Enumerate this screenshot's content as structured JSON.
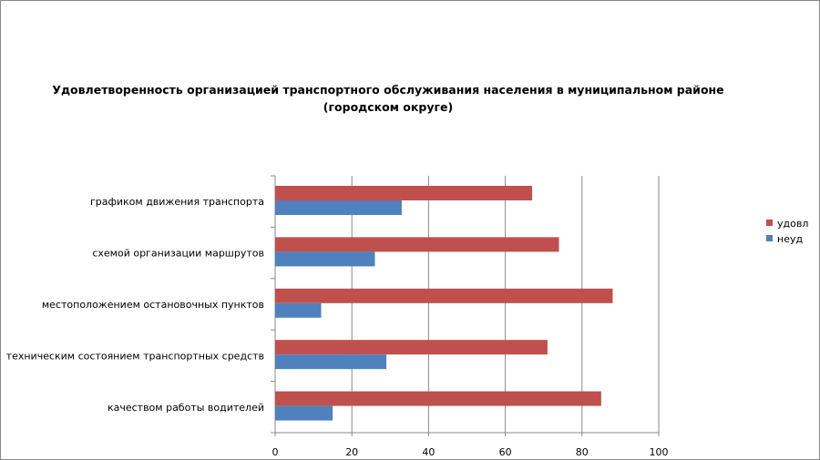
{
  "chart_data": {
    "type": "bar",
    "orientation": "horizontal",
    "title_line1": "Удовлетворенность организацией транспортного обслуживания населения в муниципальном районе",
    "title_line2": "(городском округе)",
    "categories": [
      "графиком движения транспорта",
      "схемой организации маршрутов",
      "местоположением остановочных пунктов",
      "техническим состоянием транспортных средств",
      "качеством работы водителей"
    ],
    "series": [
      {
        "name": "удовл",
        "color": "#C0504D",
        "values": [
          67,
          74,
          88,
          71,
          85
        ]
      },
      {
        "name": "неуд",
        "color": "#4F81BD",
        "values": [
          33,
          26,
          12,
          29,
          15
        ]
      }
    ],
    "xlim": [
      0,
      100
    ],
    "xticks": [
      "0",
      "20",
      "40",
      "60",
      "80",
      "100"
    ],
    "grid": true,
    "legend_position": "right"
  }
}
